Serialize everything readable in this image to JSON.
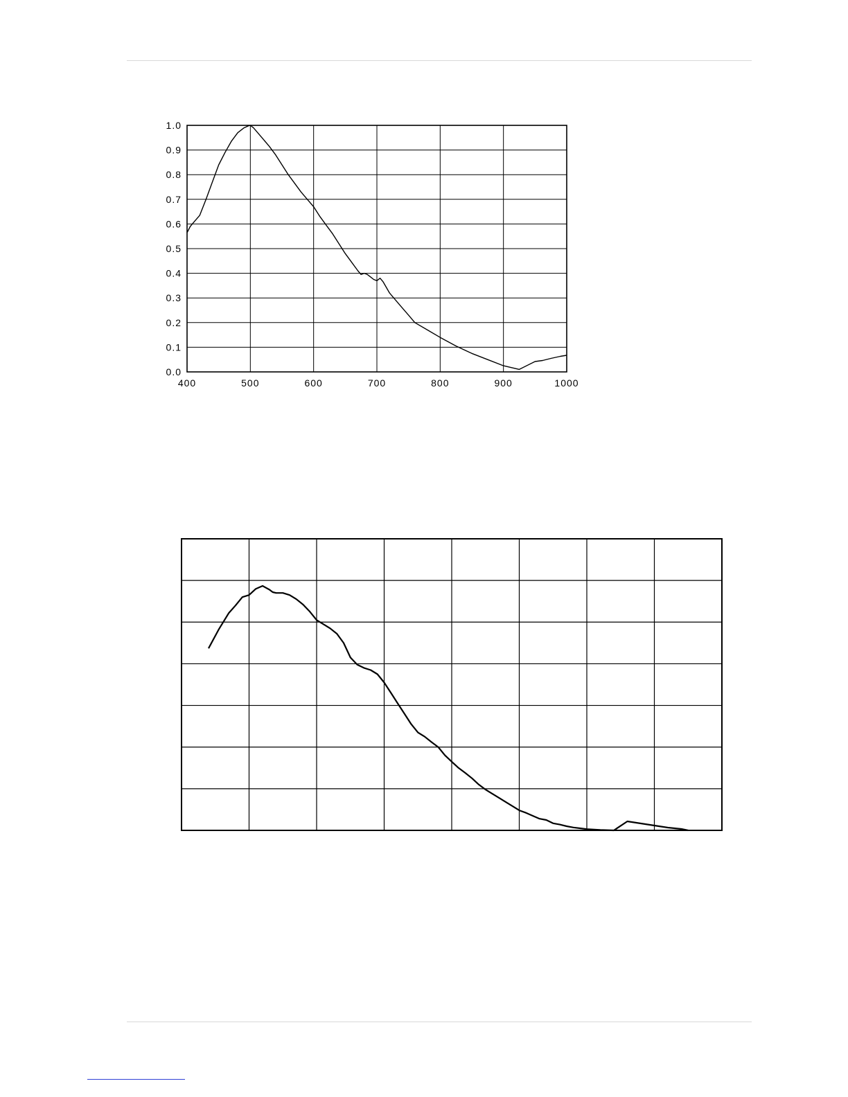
{
  "chart_data": [
    {
      "type": "line",
      "title": "",
      "xlabel": "",
      "ylabel": "",
      "xlim": [
        400,
        1000
      ],
      "ylim": [
        0,
        1
      ],
      "grid": true,
      "x_ticks": [
        "400",
        "500",
        "600",
        "700",
        "800",
        "900",
        "1000"
      ],
      "y_ticks": [
        "0.0",
        "0.1",
        "0.2",
        "0.3",
        "0.4",
        "0.5",
        "0.6",
        "0.7",
        "0.8",
        "0.9",
        "1.0"
      ],
      "colors": {
        "line": "#000000",
        "grid": "#000000"
      },
      "series": [
        {
          "x": [
            400,
            405,
            410,
            420,
            430,
            440,
            450,
            460,
            470,
            480,
            490,
            497,
            500,
            505,
            510,
            520,
            530,
            540,
            550,
            560,
            570,
            580,
            590,
            600,
            610,
            620,
            630,
            640,
            650,
            660,
            670,
            675,
            680,
            685,
            690,
            695,
            700,
            705,
            710,
            720,
            730,
            740,
            750,
            760,
            780,
            800,
            825,
            850,
            875,
            900,
            925,
            950,
            962,
            975,
            990,
            1000
          ],
          "y": [
            0.565,
            0.59,
            0.605,
            0.635,
            0.7,
            0.77,
            0.84,
            0.89,
            0.935,
            0.97,
            0.99,
            0.998,
            1.0,
            0.99,
            0.975,
            0.945,
            0.915,
            0.88,
            0.84,
            0.8,
            0.765,
            0.73,
            0.7,
            0.67,
            0.63,
            0.595,
            0.56,
            0.52,
            0.48,
            0.445,
            0.41,
            0.395,
            0.4,
            0.395,
            0.385,
            0.375,
            0.37,
            0.38,
            0.365,
            0.32,
            0.29,
            0.26,
            0.23,
            0.2,
            0.17,
            0.14,
            0.105,
            0.075,
            0.05,
            0.025,
            0.01,
            -0.01,
            -0.015,
            -0.025,
            -0.035,
            -0.04
          ]
        }
      ]
    },
    {
      "type": "line",
      "title": "",
      "xlabel": "",
      "ylabel": "",
      "xlim": [
        0,
        8
      ],
      "ylim": [
        0,
        7
      ],
      "grid": true,
      "colors": {
        "line": "#000000",
        "grid": "#000000"
      },
      "series": [
        {
          "x": [
            0.4,
            0.55,
            0.7,
            0.8,
            0.9,
            1.0,
            1.1,
            1.2,
            1.3,
            1.35,
            1.4,
            1.5,
            1.6,
            1.7,
            1.8,
            1.9,
            2.0,
            2.1,
            2.2,
            2.3,
            2.4,
            2.5,
            2.6,
            2.7,
            2.8,
            2.9,
            3.0,
            3.1,
            3.2,
            3.3,
            3.4,
            3.5,
            3.6,
            3.7,
            3.8,
            3.9,
            4.0,
            4.1,
            4.2,
            4.3,
            4.4,
            4.5,
            4.6,
            4.7,
            4.8,
            4.9,
            5.0,
            5.1,
            5.2,
            5.3,
            5.4,
            5.5,
            5.6,
            5.7,
            5.8,
            5.9,
            6.0,
            6.2,
            6.4,
            6.6,
            6.8,
            7.0,
            7.2,
            7.4,
            7.5
          ],
          "y": [
            4.37,
            4.82,
            5.22,
            5.4,
            5.6,
            5.65,
            5.8,
            5.87,
            5.78,
            5.72,
            5.7,
            5.7,
            5.65,
            5.55,
            5.42,
            5.25,
            5.05,
            4.95,
            4.85,
            4.72,
            4.5,
            4.15,
            3.98,
            3.9,
            3.85,
            3.75,
            3.55,
            3.3,
            3.05,
            2.8,
            2.55,
            2.35,
            2.25,
            2.12,
            2.0,
            1.8,
            1.65,
            1.5,
            1.38,
            1.25,
            1.1,
            0.98,
            0.88,
            0.78,
            0.68,
            0.58,
            0.48,
            0.42,
            0.35,
            0.28,
            0.25,
            0.17,
            0.14,
            0.1,
            0.07,
            0.05,
            0.03,
            0.01,
            0.0,
            -0.02,
            -0.05,
            -0.08,
            -0.11,
            -0.13,
            -0.15
          ]
        }
      ]
    }
  ]
}
